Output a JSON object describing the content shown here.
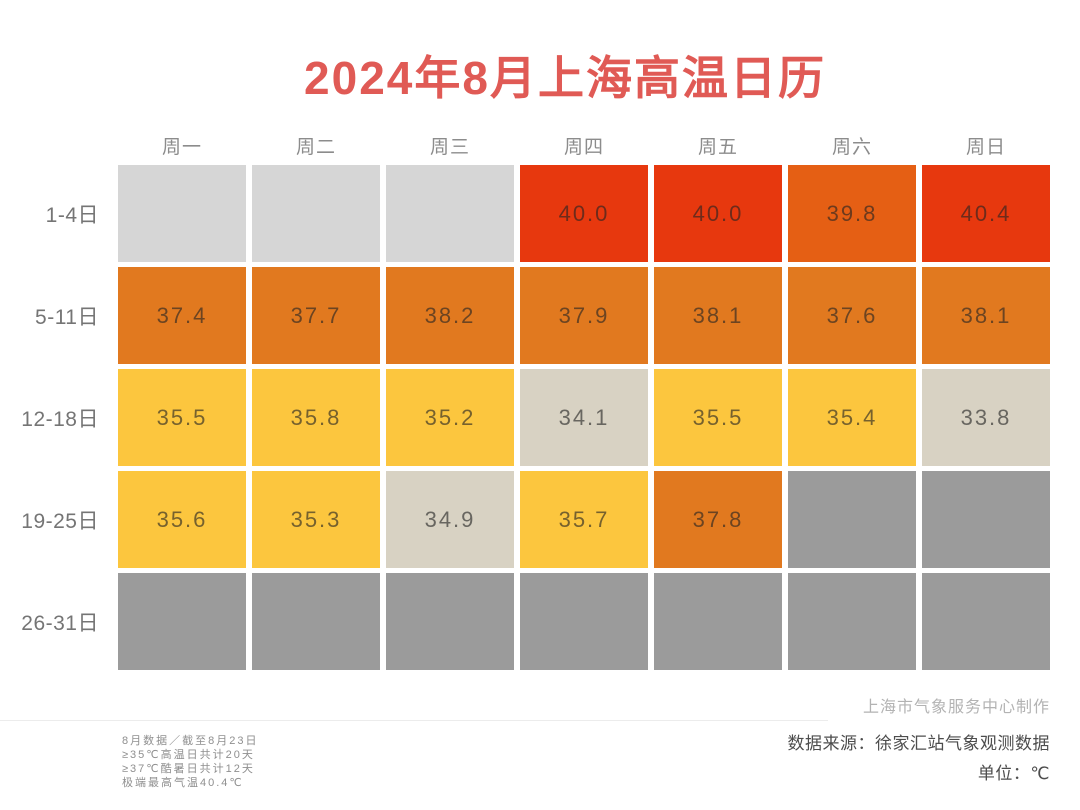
{
  "title": "2024年8月上海高温日历",
  "chart_data": {
    "type": "heatmap",
    "title": "2024年8月上海高温日历",
    "columns": [
      "周一",
      "周二",
      "周三",
      "周四",
      "周五",
      "周六",
      "周日"
    ],
    "rows": [
      "1-4日",
      "5-11日",
      "12-18日",
      "19-25日",
      "26-31日"
    ],
    "values": [
      [
        null,
        null,
        null,
        40.0,
        40.0,
        39.8,
        40.4
      ],
      [
        37.4,
        37.7,
        38.2,
        37.9,
        38.1,
        37.6,
        38.1
      ],
      [
        35.5,
        35.8,
        35.2,
        34.1,
        35.5,
        35.4,
        33.8
      ],
      [
        35.6,
        35.3,
        34.9,
        35.7,
        37.8,
        null,
        null
      ],
      [
        null,
        null,
        null,
        null,
        null,
        null,
        null
      ]
    ],
    "unit": "℃",
    "legend": "none",
    "grid": "off"
  },
  "cell_categories": [
    [
      "past",
      "past",
      "past",
      "hot40",
      "hot40",
      "hot39",
      "hot40"
    ],
    [
      "hot37",
      "hot37",
      "hot37",
      "hot37",
      "hot37",
      "hot37",
      "hot37"
    ],
    [
      "hot35",
      "hot35",
      "hot35",
      "warm",
      "hot35",
      "hot35",
      "warm"
    ],
    [
      "hot35",
      "hot35",
      "warm",
      "hot35",
      "hot37",
      "future",
      "future"
    ],
    [
      "future",
      "future",
      "future",
      "future",
      "future",
      "future",
      "future"
    ]
  ],
  "colors": {
    "title": "#e05a55",
    "past": "#d6d6d6",
    "future": "#9b9b9b",
    "warm": "#d8d2c3",
    "hot35": "#fcc63e",
    "hot37": "#e1791f",
    "hot39": "#e55f14",
    "hot40": "#e7380e"
  },
  "footer": {
    "made_by": "上海市气象服务中心制作",
    "source": "数据来源：徐家汇站气象观测数据",
    "unit": "单位：℃",
    "notes": [
      "8月数据／截至8月23日",
      "≥35℃高温日共计20天",
      "≥37℃酷暑日共计12天",
      "极端最高气温40.4℃"
    ]
  }
}
